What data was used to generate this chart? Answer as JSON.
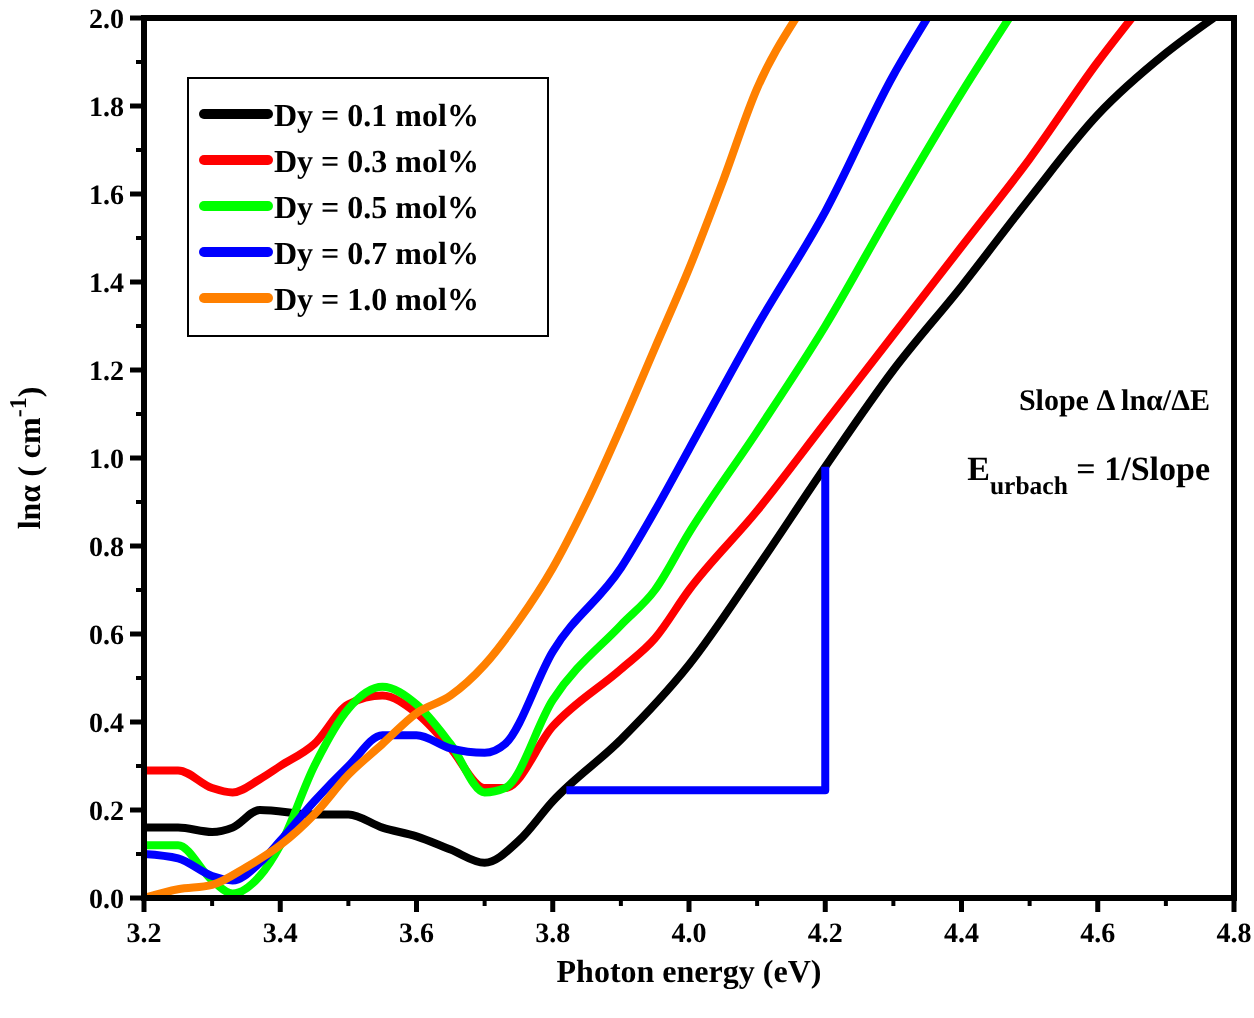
{
  "chart_data": {
    "type": "line",
    "xlabel": "Photon energy (eV)",
    "ylabel": "lnα ( cm$^{-1}$)",
    "xlim": [
      3.2,
      4.8
    ],
    "ylim": [
      0,
      2
    ],
    "xticks": [
      3.2,
      3.4,
      3.6,
      3.8,
      {
        "value": 4,
        "label": "4.0"
      },
      4.2,
      4.4,
      4.6,
      4.8
    ],
    "yticks": [
      {
        "value": 0,
        "label": "0.0"
      },
      0.2,
      0.4,
      0.6,
      0.8,
      {
        "value": 1,
        "label": "1.0"
      },
      1.2,
      1.4,
      1.6,
      1.8,
      {
        "value": 2,
        "label": "2.0"
      }
    ],
    "legend": "top left",
    "grid": false,
    "marker": "none",
    "line_style": "solid",
    "annotations": [
      "Slope Δ lnα/ΔE",
      "E$_{urbach}$ = 1/Slope"
    ],
    "series": [
      {
        "name": "Dy = 0.1 mol%",
        "color": "#000000",
        "x": [
          3.2,
          3.25,
          3.3,
          3.33,
          3.37,
          3.45,
          3.5,
          3.55,
          3.6,
          3.65,
          3.7,
          3.75,
          3.8,
          3.9,
          4.0,
          4.1,
          4.2,
          4.3,
          4.4,
          4.5,
          4.6,
          4.7,
          4.77
        ],
        "values": [
          0.16,
          0.16,
          0.15,
          0.16,
          0.2,
          0.19,
          0.19,
          0.16,
          0.14,
          0.11,
          0.08,
          0.13,
          0.22,
          0.36,
          0.53,
          0.75,
          0.98,
          1.2,
          1.39,
          1.59,
          1.78,
          1.92,
          2.0
        ]
      },
      {
        "name": "Dy = 0.3 mol%",
        "color": "#ff0000",
        "x": [
          3.2,
          3.25,
          3.3,
          3.33,
          3.37,
          3.4,
          3.45,
          3.5,
          3.55,
          3.6,
          3.65,
          3.7,
          3.73,
          3.8,
          3.9,
          3.95,
          4.0,
          4.1,
          4.2,
          4.3,
          4.4,
          4.5,
          4.6,
          4.65
        ],
        "values": [
          0.29,
          0.29,
          0.25,
          0.24,
          0.27,
          0.3,
          0.35,
          0.44,
          0.46,
          0.42,
          0.34,
          0.25,
          0.25,
          0.39,
          0.52,
          0.59,
          0.7,
          0.88,
          1.08,
          1.28,
          1.48,
          1.68,
          1.9,
          2.0
        ]
      },
      {
        "name": "Dy = 0.5 mol%",
        "color": "#00ff00",
        "x": [
          3.2,
          3.25,
          3.3,
          3.33,
          3.37,
          3.4,
          3.45,
          3.5,
          3.55,
          3.6,
          3.65,
          3.7,
          3.73,
          3.8,
          3.9,
          3.95,
          4.0,
          4.1,
          4.2,
          4.3,
          4.4,
          4.47
        ],
        "values": [
          0.12,
          0.12,
          0.04,
          0.01,
          0.05,
          0.12,
          0.3,
          0.43,
          0.48,
          0.44,
          0.35,
          0.24,
          0.25,
          0.45,
          0.62,
          0.7,
          0.83,
          1.06,
          1.3,
          1.57,
          1.83,
          2.0
        ]
      },
      {
        "name": "Dy = 0.7 mol%",
        "color": "#0000ff",
        "x": [
          3.2,
          3.25,
          3.3,
          3.33,
          3.37,
          3.4,
          3.45,
          3.5,
          3.55,
          3.6,
          3.65,
          3.7,
          3.73,
          3.8,
          3.9,
          3.95,
          4.0,
          4.1,
          4.2,
          4.3,
          4.35
        ],
        "values": [
          0.1,
          0.09,
          0.05,
          0.04,
          0.08,
          0.13,
          0.22,
          0.3,
          0.37,
          0.37,
          0.34,
          0.33,
          0.35,
          0.56,
          0.75,
          0.88,
          1.02,
          1.3,
          1.56,
          1.87,
          2.0
        ]
      },
      {
        "name": "Dy = 1.0 mol%",
        "color": "#ff8000",
        "x": [
          3.2,
          3.25,
          3.3,
          3.35,
          3.4,
          3.45,
          3.5,
          3.55,
          3.6,
          3.65,
          3.7,
          3.75,
          3.8,
          3.85,
          3.9,
          3.95,
          4.0,
          4.05,
          4.1,
          4.157
        ],
        "values": [
          0.0,
          0.02,
          0.03,
          0.07,
          0.12,
          0.19,
          0.28,
          0.35,
          0.42,
          0.46,
          0.53,
          0.63,
          0.75,
          0.9,
          1.07,
          1.25,
          1.43,
          1.63,
          1.84,
          2.0
        ]
      },
      {
        "color": "#0000ff",
        "x": [
          3.82,
          4.2,
          4.2
        ],
        "values": [
          0.245,
          0.245,
          0.98
        ]
      }
    ]
  }
}
